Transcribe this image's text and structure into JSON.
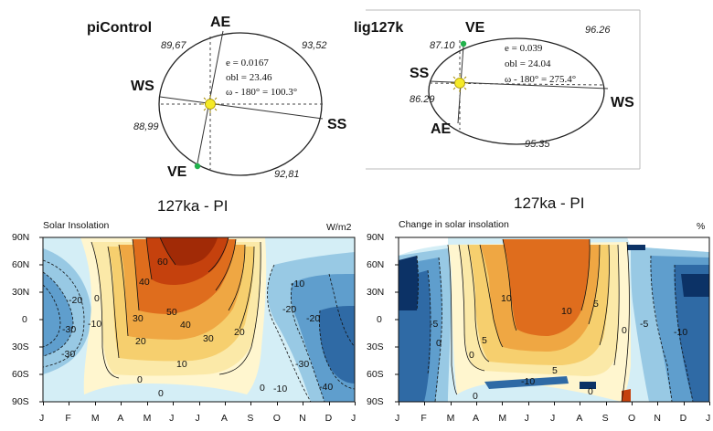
{
  "orbits": [
    {
      "name": "piControl",
      "params": [
        "e = 0.0167",
        "obl = 23.46",
        "ω - 180° = 100.3°"
      ],
      "season_labels": {
        "ae": "AE",
        "ve": "VE",
        "ws": "WS",
        "ss": "SS"
      },
      "durations": [
        "89,67",
        "93,52",
        "88,99",
        "92,81"
      ]
    },
    {
      "name": "lig127k",
      "params": [
        "e = 0.039",
        "obl = 24.04",
        "ω - 180° = 275.4°"
      ],
      "season_labels": {
        "ve": "VE",
        "ss": "SS",
        "ae": "AE",
        "ws": "WS"
      },
      "durations": [
        "87.10",
        "96.26",
        "86.29",
        "95.35"
      ]
    }
  ],
  "panel_titles": [
    "127ka - PI",
    "127ka - PI"
  ],
  "colors": {
    "dark_red": "#a12a06",
    "red_orange": "#c5410d",
    "orange": "#df6d1d",
    "light_orange": "#efa743",
    "yellow_orange": "#f6cf6e",
    "pale_yellow": "#fbe9a8",
    "cream": "#fff6cf",
    "light_blue": "#d4eef6",
    "mid_blue": "#98c9e4",
    "steel_blue": "#5f9ecd",
    "dark_blue": "#2f6aa5",
    "navy": "#0c3266"
  },
  "chart_data": [
    {
      "type": "heatmap",
      "title": "Solar Insolation",
      "units": "W/m2",
      "x_ticks": [
        "J",
        "F",
        "M",
        "A",
        "M",
        "J",
        "J",
        "A",
        "S",
        "O",
        "N",
        "D",
        "J"
      ],
      "y_ticks": [
        "90N",
        "60N",
        "30N",
        "0",
        "30S",
        "60S",
        "90S"
      ],
      "ylim": [
        -90,
        90
      ],
      "contour_levels_labeled": [
        -40,
        -30,
        -20,
        -10,
        0,
        10,
        20,
        30,
        40,
        50,
        60
      ],
      "annotations": [
        "60",
        "40",
        "50",
        "40",
        "30",
        "20",
        "30",
        "20",
        "10",
        "0",
        "0",
        "0",
        "0",
        "-10",
        "-20",
        "-30",
        "-10",
        "-20",
        "-30",
        "-40",
        "-20",
        "-10",
        "-30"
      ],
      "regions": [
        {
          "name": "boreal_summer_max",
          "value": 60
        },
        {
          "name": "austral_winter_min",
          "value": -40
        }
      ]
    },
    {
      "type": "heatmap",
      "title": "Change in solar insolation",
      "units": "%",
      "x_ticks": [
        "J",
        "F",
        "M",
        "A",
        "M",
        "J",
        "J",
        "A",
        "S",
        "O",
        "N",
        "D",
        "J"
      ],
      "y_ticks": [
        "90N",
        "60N",
        "30N",
        "0",
        "30S",
        "60S",
        "90S"
      ],
      "ylim": [
        -90,
        90
      ],
      "contour_levels_labeled": [
        -10,
        -5,
        0,
        5,
        10
      ],
      "annotations": [
        "10",
        "10",
        "5",
        "5",
        "0",
        "5",
        "-10",
        "0",
        "-5",
        "0",
        "-5",
        "-10",
        "0",
        "0"
      ]
    }
  ]
}
